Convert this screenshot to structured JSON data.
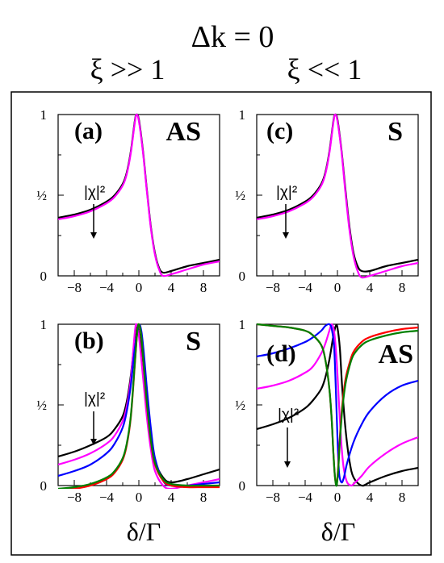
{
  "header": {
    "delta_k": "Δk = 0",
    "left_regime": "ξ >> 1",
    "right_regime": "ξ << 1"
  },
  "colors": {
    "black": "#000000",
    "magenta": "#ff00ff",
    "blue": "#0000ff",
    "red": "#ff0000",
    "green": "#008000"
  },
  "chart_data": [
    {
      "type": "line",
      "panel": "(a)",
      "label": "AS",
      "annotation": "|χ|²",
      "xlim": [
        -10,
        10
      ],
      "ylim": [
        0,
        1
      ],
      "xticks": [
        "−8",
        "−4",
        "0",
        "4",
        "8"
      ],
      "yticks": [
        "0",
        "½",
        "1"
      ],
      "series": [
        {
          "color": "#000000",
          "x": [
            -10,
            -8,
            -6,
            -4,
            -3,
            -2,
            -1.5,
            -1,
            -0.5,
            -0.3,
            0,
            0.5,
            1,
            1.5,
            2,
            2.5,
            3,
            4,
            6,
            8,
            10
          ],
          "y": [
            0.36,
            0.38,
            0.41,
            0.46,
            0.5,
            0.57,
            0.64,
            0.77,
            0.96,
            1.0,
            0.97,
            0.78,
            0.53,
            0.3,
            0.14,
            0.05,
            0.02,
            0.03,
            0.06,
            0.08,
            0.1
          ]
        },
        {
          "color": "#ff00ff",
          "x": [
            -10,
            -8,
            -6,
            -4,
            -3,
            -2,
            -1.5,
            -1,
            -0.5,
            -0.3,
            0,
            0.5,
            1,
            1.5,
            2,
            2.5,
            3,
            4,
            6,
            8,
            10
          ],
          "y": [
            0.35,
            0.37,
            0.4,
            0.45,
            0.49,
            0.56,
            0.63,
            0.76,
            0.95,
            1.0,
            0.96,
            0.77,
            0.52,
            0.29,
            0.13,
            0.04,
            0.0,
            0.01,
            0.04,
            0.07,
            0.09
          ]
        }
      ]
    },
    {
      "type": "line",
      "panel": "(b)",
      "label": "S",
      "annotation": "|χ|²",
      "xlim": [
        -10,
        10
      ],
      "ylim": [
        0,
        1
      ],
      "xticks": [
        "−8",
        "−4",
        "0",
        "4",
        "8"
      ],
      "yticks": [
        "0",
        "½",
        "1"
      ],
      "series": [
        {
          "color": "#000000",
          "x": [
            -10,
            -8,
            -6,
            -4,
            -3,
            -2,
            -1.5,
            -1,
            -0.5,
            -0.3,
            0,
            0.5,
            1,
            1.5,
            2,
            3,
            4,
            6,
            8,
            10
          ],
          "y": [
            0.18,
            0.21,
            0.25,
            0.3,
            0.35,
            0.43,
            0.52,
            0.68,
            0.92,
            0.99,
            0.95,
            0.75,
            0.5,
            0.3,
            0.15,
            0.05,
            0.02,
            0.04,
            0.07,
            0.1
          ]
        },
        {
          "color": "#ff00ff",
          "x": [
            -10,
            -8,
            -6,
            -4,
            -3,
            -2,
            -1.5,
            -1,
            -0.5,
            -0.3,
            0,
            0.5,
            1,
            1.5,
            2,
            3,
            4,
            6,
            8,
            10
          ],
          "y": [
            0.13,
            0.16,
            0.2,
            0.26,
            0.31,
            0.4,
            0.49,
            0.66,
            0.95,
            1.0,
            0.93,
            0.68,
            0.42,
            0.22,
            0.09,
            0.0,
            -0.02,
            0.0,
            0.02,
            0.04
          ]
        },
        {
          "color": "#0000ff",
          "x": [
            -10,
            -8,
            -6,
            -4,
            -3,
            -2,
            -1.5,
            -1,
            -0.5,
            0,
            0.3,
            0.6,
            1,
            1.5,
            2,
            3,
            4,
            6,
            8,
            10
          ],
          "y": [
            0.06,
            0.09,
            0.13,
            0.2,
            0.26,
            0.36,
            0.46,
            0.62,
            0.85,
            0.99,
            0.96,
            0.83,
            0.6,
            0.35,
            0.17,
            0.03,
            0.0,
            0.0,
            0.01,
            0.02
          ]
        },
        {
          "color": "#ff0000",
          "x": [
            -10,
            -8,
            -6,
            -4,
            -3,
            -2,
            -1.5,
            -1,
            -0.5,
            -0.2,
            0,
            0.3,
            0.6,
            1,
            1.5,
            2,
            3,
            4,
            6,
            8,
            10
          ],
          "y": [
            -0.03,
            -0.02,
            0.0,
            0.04,
            0.08,
            0.16,
            0.25,
            0.42,
            0.75,
            0.95,
            1.0,
            0.92,
            0.74,
            0.5,
            0.27,
            0.13,
            0.03,
            0.0,
            -0.01,
            -0.01,
            -0.01
          ]
        },
        {
          "color": "#008000",
          "x": [
            -10,
            -8,
            -6,
            -4,
            -3,
            -2,
            -1.5,
            -1,
            -0.5,
            -0.2,
            0,
            0.3,
            0.6,
            1,
            1.5,
            2,
            3,
            4,
            6,
            8,
            10
          ],
          "y": [
            -0.02,
            -0.01,
            0.01,
            0.05,
            0.09,
            0.17,
            0.26,
            0.43,
            0.76,
            0.95,
            1.0,
            0.93,
            0.75,
            0.51,
            0.28,
            0.14,
            0.04,
            0.01,
            0.0,
            0.0,
            0.0
          ]
        }
      ]
    },
    {
      "type": "line",
      "panel": "(c)",
      "label": "S",
      "annotation": "|χ|²",
      "xlim": [
        -10,
        10
      ],
      "ylim": [
        0,
        1
      ],
      "xticks": [
        "−8",
        "−4",
        "0",
        "4",
        "8"
      ],
      "yticks": [
        "0",
        "½",
        "1"
      ],
      "series": [
        {
          "color": "#000000",
          "x": [
            -10,
            -8,
            -6,
            -4,
            -3,
            -2,
            -1.5,
            -1,
            -0.5,
            -0.3,
            0,
            0.5,
            1,
            1.5,
            2,
            2.5,
            3,
            4,
            6,
            8,
            10
          ],
          "y": [
            0.36,
            0.38,
            0.41,
            0.46,
            0.5,
            0.57,
            0.64,
            0.77,
            0.96,
            1.0,
            0.97,
            0.78,
            0.53,
            0.3,
            0.14,
            0.06,
            0.03,
            0.03,
            0.06,
            0.08,
            0.1
          ]
        },
        {
          "color": "#ff00ff",
          "x": [
            -10,
            -8,
            -6,
            -4,
            -3,
            -2,
            -1.5,
            -1,
            -0.5,
            -0.3,
            0,
            0.5,
            1,
            1.5,
            2,
            2.5,
            3,
            4,
            6,
            8,
            10
          ],
          "y": [
            0.35,
            0.37,
            0.4,
            0.45,
            0.49,
            0.56,
            0.63,
            0.76,
            0.95,
            1.0,
            0.96,
            0.77,
            0.51,
            0.28,
            0.12,
            0.03,
            -0.01,
            0.0,
            0.03,
            0.06,
            0.08
          ]
        }
      ]
    },
    {
      "type": "line",
      "panel": "(d)",
      "label": "AS",
      "annotation": "|χ|²",
      "xlim": [
        -10,
        10
      ],
      "ylim": [
        0,
        1
      ],
      "xticks": [
        "−8",
        "−4",
        "0",
        "4",
        "8"
      ],
      "yticks": [
        "0",
        "½",
        "1"
      ],
      "series": [
        {
          "color": "#000000",
          "x": [
            -10,
            -8,
            -6,
            -4,
            -3,
            -2,
            -1.5,
            -1,
            -0.5,
            -0.2,
            0,
            0.3,
            0.6,
            1,
            1.5,
            2,
            3,
            4,
            6,
            8,
            10
          ],
          "y": [
            0.35,
            0.38,
            0.42,
            0.48,
            0.53,
            0.6,
            0.67,
            0.78,
            0.93,
            0.99,
            0.98,
            0.85,
            0.6,
            0.35,
            0.15,
            0.05,
            0.0,
            0.02,
            0.06,
            0.09,
            0.11
          ]
        },
        {
          "color": "#ff00ff",
          "x": [
            -10,
            -8,
            -6,
            -4,
            -3,
            -2,
            -1.5,
            -1,
            -0.7,
            -0.4,
            -0.1,
            0.2,
            0.5,
            0.8,
            1.2,
            1.7,
            2,
            3,
            4,
            6,
            8,
            10
          ],
          "y": [
            0.6,
            0.62,
            0.65,
            0.7,
            0.74,
            0.82,
            0.88,
            0.96,
            1.0,
            0.95,
            0.78,
            0.5,
            0.25,
            0.1,
            0.02,
            0.0,
            0.01,
            0.06,
            0.12,
            0.2,
            0.26,
            0.3
          ]
        },
        {
          "color": "#0000ff",
          "x": [
            -10,
            -8,
            -6,
            -4,
            -3,
            -2,
            -1.5,
            -1,
            -0.7,
            -0.4,
            -0.2,
            0,
            0.2,
            0.5,
            0.8,
            1.2,
            2,
            3,
            4,
            6,
            8,
            10
          ],
          "y": [
            0.8,
            0.82,
            0.85,
            0.89,
            0.92,
            0.96,
            0.99,
            1.0,
            0.97,
            0.85,
            0.6,
            0.3,
            0.08,
            0.02,
            0.05,
            0.14,
            0.27,
            0.38,
            0.46,
            0.56,
            0.62,
            0.65
          ]
        },
        {
          "color": "#ff0000",
          "x": [
            -10,
            -8,
            -6,
            -4,
            -3,
            -2,
            -1.5,
            -1,
            -0.7,
            -0.5,
            -0.3,
            -0.1,
            0.1,
            0.3,
            0.6,
            1,
            1.5,
            2,
            3,
            4,
            6,
            8,
            10
          ],
          "y": [
            1.0,
            0.99,
            0.98,
            0.96,
            0.93,
            0.87,
            0.78,
            0.6,
            0.4,
            0.2,
            0.05,
            0.01,
            0.12,
            0.3,
            0.5,
            0.66,
            0.76,
            0.83,
            0.89,
            0.92,
            0.95,
            0.97,
            0.98
          ]
        },
        {
          "color": "#008000",
          "x": [
            -10,
            -8,
            -6,
            -4,
            -3,
            -2,
            -1.5,
            -1,
            -0.7,
            -0.5,
            -0.3,
            -0.1,
            0.1,
            0.3,
            0.6,
            1,
            1.5,
            2,
            3,
            4,
            6,
            8,
            10
          ],
          "y": [
            1.0,
            0.99,
            0.98,
            0.96,
            0.93,
            0.87,
            0.78,
            0.6,
            0.4,
            0.2,
            0.05,
            0.0,
            0.1,
            0.27,
            0.47,
            0.63,
            0.74,
            0.81,
            0.87,
            0.9,
            0.93,
            0.95,
            0.96
          ]
        }
      ]
    }
  ],
  "axes": {
    "xlabel": "δ/Γ"
  }
}
